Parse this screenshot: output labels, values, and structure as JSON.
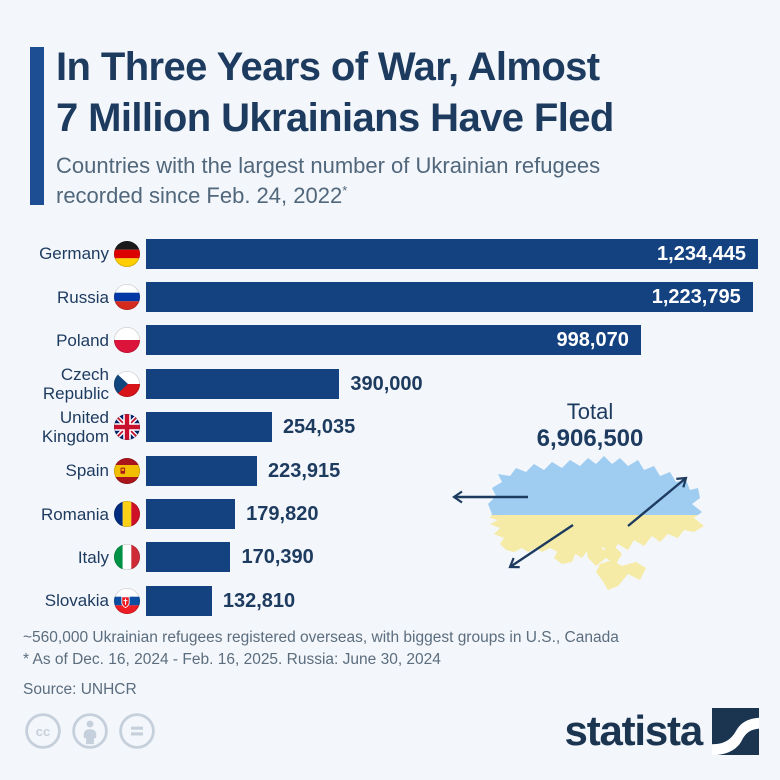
{
  "page": {
    "background": "#f3f6fa"
  },
  "header": {
    "title_line1": "In Three Years of War, Almost",
    "title_line2": "7 Million Ukrainians Have Fled",
    "subtitle_line1": "Countries with the largest number of Ukrainian refugees",
    "subtitle_line2": "recorded since Feb. 24, 2022",
    "subtitle_asterisk": "*"
  },
  "chart_data": {
    "type": "bar",
    "orientation": "horizontal",
    "title": "Countries with the largest number of Ukrainian refugees recorded since Feb. 24, 2022",
    "categories": [
      "Germany",
      "Russia",
      "Poland",
      "Czech Republic",
      "United Kingdom",
      "Spain",
      "Romania",
      "Italy",
      "Slovakia"
    ],
    "values": [
      1234445,
      1223795,
      998070,
      390000,
      254035,
      223915,
      179820,
      170390,
      132810
    ],
    "value_labels": [
      "1,234,445",
      "1,223,795",
      "998,070",
      "390,000",
      "254,035",
      "223,915",
      "179,820",
      "170,390",
      "132,810"
    ],
    "flags": [
      "germany-flag",
      "russia-flag",
      "poland-flag",
      "czech-republic-flag",
      "united-kingdom-flag",
      "spain-flag",
      "romania-flag",
      "italy-flag",
      "slovakia-flag"
    ],
    "x_max": 1234445,
    "xlabel": "",
    "ylabel": "",
    "grid": false,
    "legend": false,
    "bar_color": "#14417f",
    "inside_label_threshold_pct": 50,
    "total": {
      "label": "Total",
      "value": "6,906,500"
    },
    "map": {
      "name": "ukraine-map",
      "top_color": "#9fccf1",
      "bottom_color": "#f6eba6"
    }
  },
  "footnotes": {
    "line1": "~560,000 Ukrainian refugees registered overseas, with biggest groups in U.S., Canada",
    "line2": "* As of Dec. 16, 2024 - Feb. 16, 2025. Russia: June 30, 2024",
    "source": "Source: UNHCR"
  },
  "footer": {
    "brand": "statista",
    "license_icons": [
      "cc-icon",
      "by-icon",
      "nd-icon"
    ]
  }
}
